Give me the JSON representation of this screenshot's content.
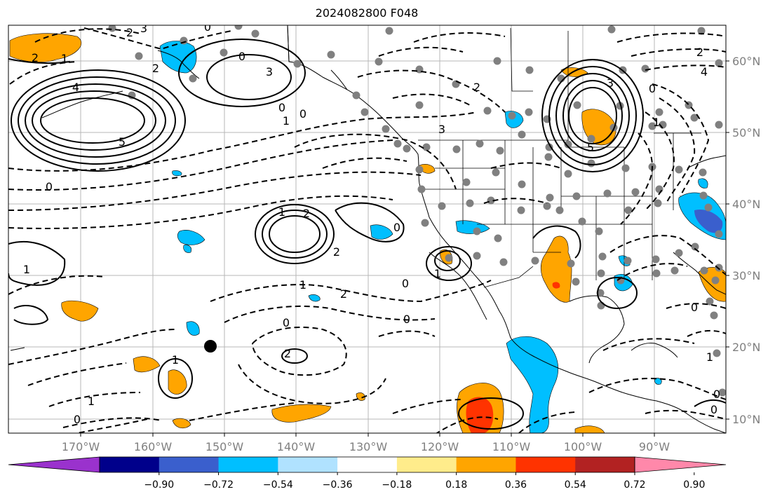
{
  "title": "2024082800 F048",
  "lon_labels": [
    "170°W",
    "160°W",
    "150°W",
    "140°W",
    "130°W",
    "120°W",
    "110°W",
    "100°W",
    "90°W"
  ],
  "lat_labels": [
    "60°N",
    "50°N",
    "40°N",
    "30°N",
    "20°N",
    "10°N"
  ],
  "colorbar": {
    "colors": [
      "#9a32cd",
      "#00008b",
      "#3a5fcd",
      "#00bfff",
      "#b0e2ff",
      "#ffffff",
      "#ffec8b",
      "#ffa500",
      "#ff3300",
      "#b22222",
      "#ff88aa"
    ],
    "tick_labels": [
      "−0.90",
      "−0.72",
      "−0.54",
      "−0.36",
      "−0.18",
      "0.18",
      "0.36",
      "0.54",
      "0.72",
      "0.90"
    ]
  },
  "colors": {
    "land_line": "#000000",
    "grid": "#999999",
    "station": "#808080",
    "tick_text": "#808080"
  },
  "contour_labels": [
    {
      "text": "2"
    },
    {
      "text": "3"
    },
    {
      "text": "0"
    },
    {
      "text": "1"
    },
    {
      "text": "2"
    },
    {
      "text": "4"
    },
    {
      "text": "5"
    },
    {
      "text": "3"
    },
    {
      "text": "0"
    },
    {
      "text": "1"
    },
    {
      "text": "0"
    },
    {
      "text": "2"
    },
    {
      "text": "0"
    },
    {
      "text": "1"
    },
    {
      "text": "0"
    },
    {
      "text": "2"
    },
    {
      "text": "2"
    },
    {
      "text": "1"
    },
    {
      "text": "0"
    },
    {
      "text": "2"
    },
    {
      "text": "1"
    },
    {
      "text": "0"
    },
    {
      "text": "2"
    },
    {
      "text": "0"
    },
    {
      "text": "0"
    },
    {
      "text": "1"
    },
    {
      "text": "0"
    },
    {
      "text": "1"
    },
    {
      "text": "2"
    },
    {
      "text": "3"
    },
    {
      "text": "5"
    },
    {
      "text": "3"
    },
    {
      "text": "2"
    },
    {
      "text": "4"
    },
    {
      "text": "0"
    },
    {
      "text": "1"
    },
    {
      "text": "0"
    },
    {
      "text": "1"
    },
    {
      "text": "0"
    },
    {
      "text": "0"
    },
    {
      "text": "1"
    }
  ]
}
